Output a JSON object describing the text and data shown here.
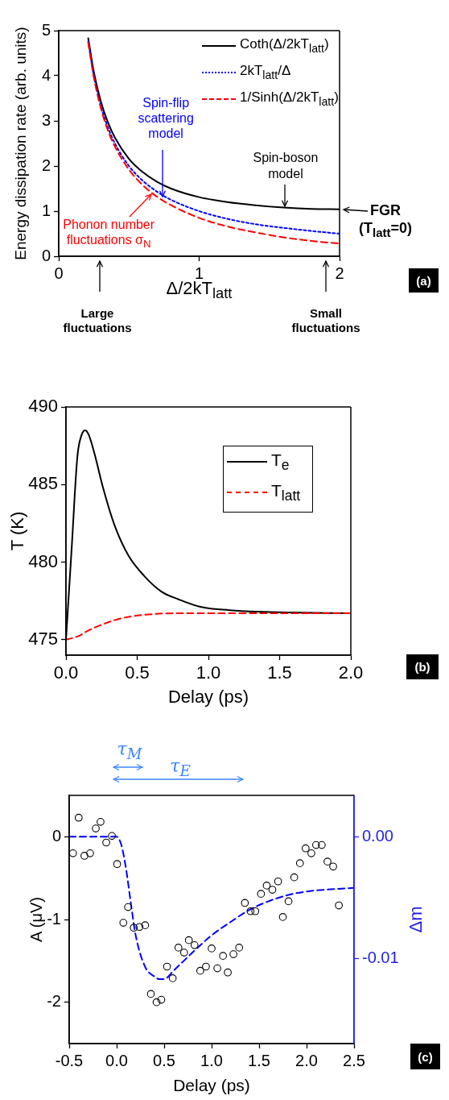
{
  "chart_data": [
    {
      "type": "line",
      "xlabel": "Δ/2kT$_{latt}$",
      "ylabel": "Energy dissipation rate (arb. units)",
      "x": [
        0.21,
        0.25,
        0.3,
        0.35,
        0.4,
        0.5,
        0.6,
        0.7,
        0.8,
        1.0,
        1.2,
        1.4,
        1.6,
        1.8,
        2.0
      ],
      "series": [
        {
          "name": "Coth(Δ/2kT$_{latt}$)",
          "color": "#000000",
          "line_style": "solid",
          "values": [
            4.83,
            4.08,
            3.43,
            2.97,
            2.63,
            2.16,
            1.86,
            1.65,
            1.5,
            1.31,
            1.2,
            1.13,
            1.08,
            1.05,
            1.04
          ]
        },
        {
          "name": "2kT$_{latt}$/Δ",
          "color": "#0000ff",
          "line_style": "dotted",
          "values": [
            4.76,
            4.0,
            3.33,
            2.86,
            2.5,
            2.0,
            1.67,
            1.43,
            1.25,
            1.0,
            0.83,
            0.71,
            0.63,
            0.56,
            0.5
          ]
        },
        {
          "name": "1/Sinh(Δ/2kT$_{latt}$)",
          "color": "#ff0000",
          "line_style": "dashed",
          "values": [
            4.73,
            3.96,
            3.28,
            2.79,
            2.43,
            1.92,
            1.57,
            1.32,
            1.13,
            0.85,
            0.66,
            0.53,
            0.42,
            0.34,
            0.28
          ]
        }
      ],
      "xlim": [
        0,
        2
      ],
      "xticks": [
        0,
        1,
        2
      ],
      "ylim": [
        0,
        5
      ],
      "yticks": [
        0,
        1,
        2,
        3,
        4,
        5
      ],
      "legend": "top right",
      "annotations": [
        {
          "text": "Spin-flip scattering model",
          "x": 0.74,
          "y": 1.32
        },
        {
          "text": "Spin-boson model",
          "x": 1.61,
          "y": 1.1
        },
        {
          "text": "Phonon number fluctuations σ$_{N}$",
          "x": 0.66,
          "y": 1.37
        },
        {
          "text": "FGR (T$_{latt}$=0)",
          "x": 2,
          "y": 1.03
        },
        "Large fluctuations",
        "Small fluctuations",
        "(a)"
      ]
    },
    {
      "type": "line",
      "xlabel": "Delay (ps)",
      "ylabel": "T (K)",
      "series": [
        {
          "name": "T$_{e}$",
          "color": "#000000",
          "line_style": "solid",
          "x": [
            0,
            0.04,
            0.08,
            0.11,
            0.135,
            0.16,
            0.2,
            0.26,
            0.34,
            0.44,
            0.55,
            0.67,
            0.79,
            0.95,
            1.15,
            1.35,
            1.56,
            2.0
          ],
          "values": [
            475,
            480.9,
            486.8,
            488.2,
            488.5,
            488.2,
            487.0,
            484.8,
            482.4,
            480.4,
            479.1,
            478.1,
            477.6,
            477.1,
            476.9,
            476.8,
            476.75,
            476.7
          ]
        },
        {
          "name": "T$_{latt}$",
          "color": "#ff0000",
          "line_style": "dashed",
          "x": [
            0,
            0.08,
            0.16,
            0.26,
            0.4,
            0.55,
            0.75,
            1.15,
            2.0
          ],
          "values": [
            475,
            475.2,
            475.6,
            476.0,
            476.4,
            476.6,
            476.7,
            476.7,
            476.7
          ]
        }
      ],
      "xlim": [
        0,
        2
      ],
      "xticks": [
        {
          "value": 0,
          "label": "0.0"
        },
        0.5,
        {
          "value": 1,
          "label": "1.0"
        },
        1.5,
        {
          "value": 2,
          "label": "2.0"
        }
      ],
      "ylim": [
        474,
        490
      ],
      "yticks": [
        475,
        480,
        485,
        490
      ],
      "legend": "top right",
      "annotations": [
        "(b)"
      ]
    },
    {
      "type": "scatter",
      "xlabel": "Delay (ps)",
      "ylabel": "A (μV)",
      "y2label": "Δm",
      "series": [
        {
          "color": "#000000",
          "marker": "circle",
          "x": [
            -0.46,
            -0.4,
            -0.34,
            -0.28,
            -0.22,
            -0.17,
            -0.11,
            -0.05,
            0.005,
            0.07,
            0.12,
            0.18,
            0.24,
            0.3,
            0.36,
            0.42,
            0.47,
            0.53,
            0.59,
            0.65,
            0.71,
            0.76,
            0.82,
            0.88,
            0.94,
            1.0,
            1.06,
            1.12,
            1.17,
            1.23,
            1.29,
            1.35,
            1.41,
            1.46,
            1.52,
            1.58,
            1.64,
            1.7,
            1.75,
            1.81,
            1.87,
            1.93,
            1.99,
            2.05,
            2.1,
            2.16,
            2.22,
            2.28,
            2.34
          ],
          "values": [
            -0.2,
            0.23,
            -0.23,
            -0.2,
            0.1,
            0.18,
            -0.07,
            0.01,
            -0.33,
            -1.04,
            -0.85,
            -1.1,
            -1.09,
            -1.07,
            -1.9,
            -2.0,
            -1.97,
            -1.57,
            -1.71,
            -1.34,
            -1.4,
            -1.25,
            -1.31,
            -1.62,
            -1.57,
            -1.35,
            -1.59,
            -1.44,
            -1.64,
            -1.42,
            -1.34,
            -0.8,
            -0.9,
            -0.9,
            -0.69,
            -0.59,
            -0.64,
            -0.54,
            -0.97,
            -0.78,
            -0.49,
            -0.32,
            -0.14,
            -0.2,
            -0.1,
            -0.1,
            -0.3,
            -0.36,
            -0.83
          ]
        },
        {
          "type": "line",
          "axis": "y2",
          "color": "#0000ff",
          "line_style": "dashed",
          "x": [
            -0.5,
            0,
            0.05,
            0.1,
            0.15,
            0.2,
            0.3,
            0.4,
            0.45,
            0.5,
            0.6,
            0.8,
            1.0,
            1.2,
            1.4,
            1.6,
            1.8,
            2.0,
            2.5
          ],
          "values": [
            0,
            0,
            -0.0007,
            -0.0027,
            -0.0055,
            -0.0081,
            -0.0107,
            -0.0115,
            -0.0117,
            -0.0117,
            -0.011,
            -0.0095,
            -0.0081,
            -0.007,
            -0.006,
            -0.0053,
            -0.0048,
            -0.0045,
            -0.0042
          ]
        }
      ],
      "xlim": [
        -0.5,
        2.5
      ],
      "xticks": [
        -0.5,
        {
          "value": 0,
          "label": "0.0"
        },
        0.5,
        {
          "value": 1,
          "label": "1.0"
        },
        1.5,
        {
          "value": 2,
          "label": "2.0"
        },
        2.5
      ],
      "ylim": [
        -2.5,
        0.5
      ],
      "yticks": [
        -2,
        -1,
        0
      ],
      "y2lim": [
        -0.017,
        0.0034
      ],
      "y2ticks": [
        {
          "value": -0.01,
          "label": "-0.01"
        },
        {
          "value": 0,
          "label": "0.00"
        }
      ],
      "annotations": [
        "τ$_{M}$",
        "τ$_{E}$",
        "(c)"
      ]
    }
  ]
}
